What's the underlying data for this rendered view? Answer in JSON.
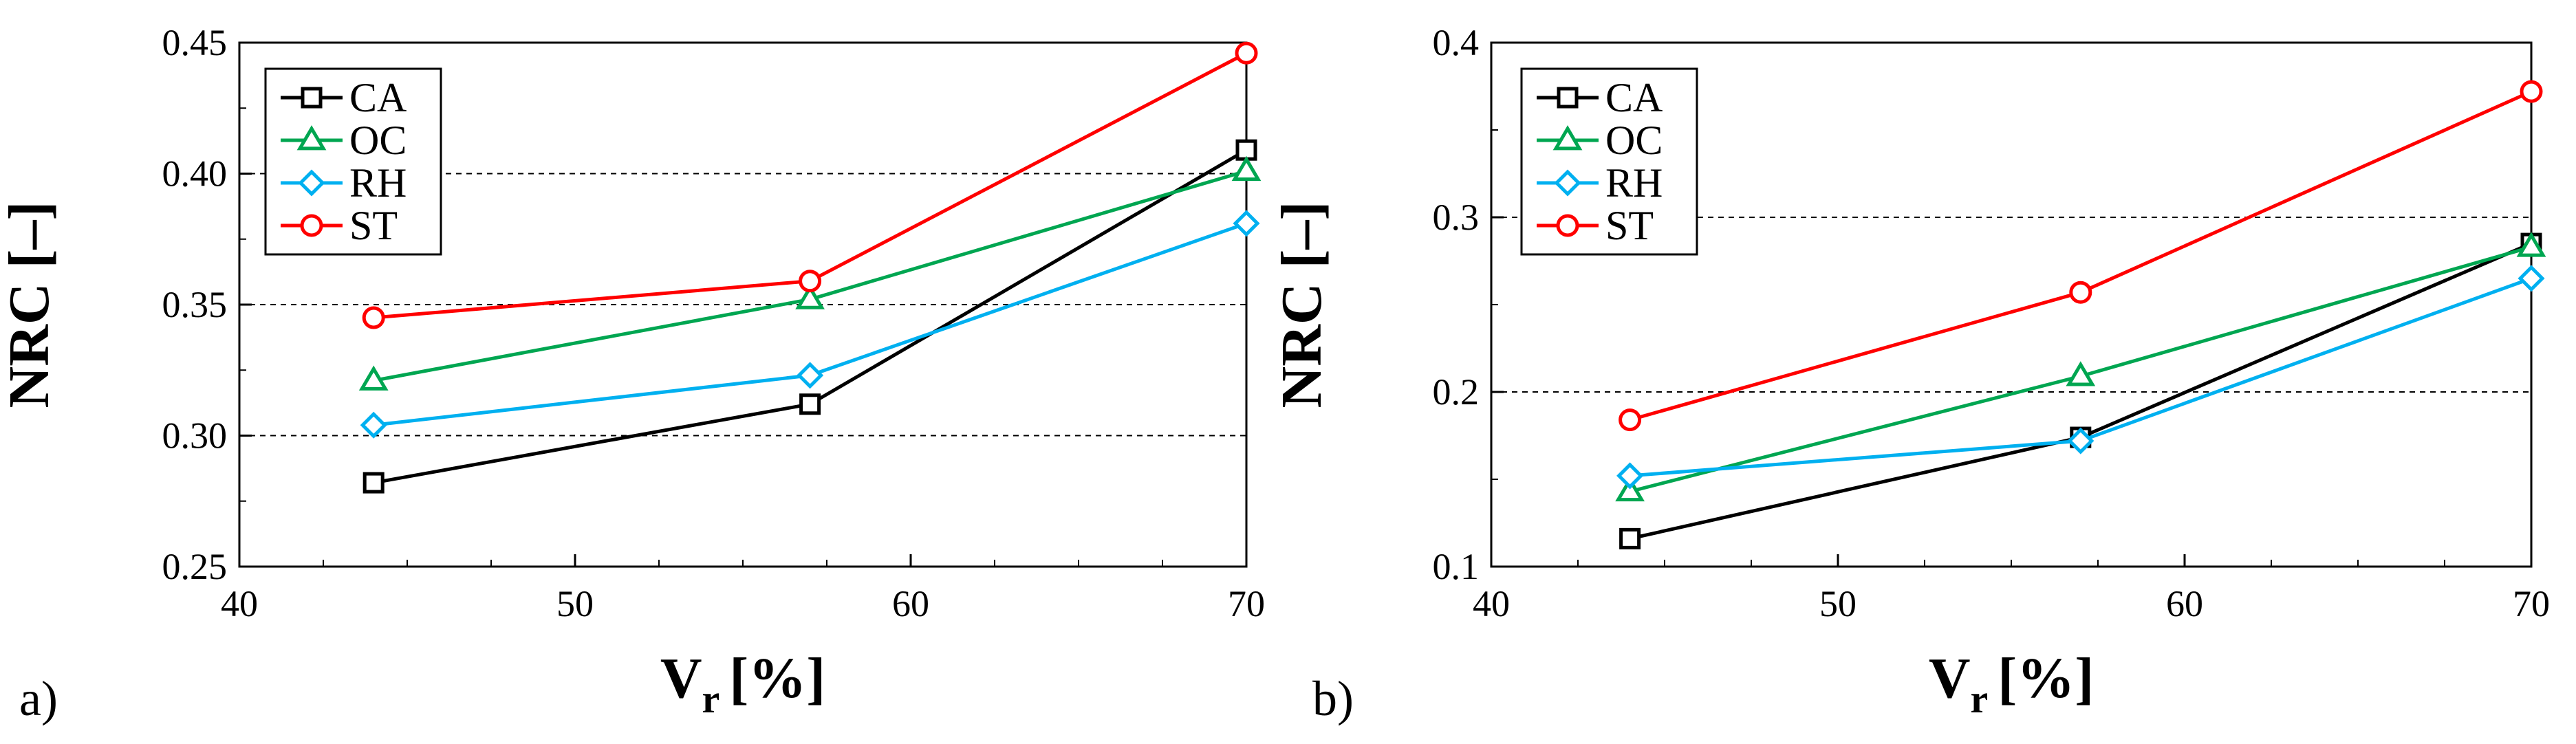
{
  "chart_data": [
    {
      "type": "line",
      "panel_label": "a)",
      "xlabel": "V",
      "xlabel_sub": "r",
      "xlabel_unit": "[%]",
      "ylabel": "NRC [–]",
      "xlim": [
        40,
        70
      ],
      "ylim": [
        0.25,
        0.45
      ],
      "xticks": [
        "40",
        "50",
        "60",
        "70"
      ],
      "xtick_values": [
        40,
        50,
        60,
        70
      ],
      "yticks": [
        "0.25",
        "0.30",
        "0.35",
        "0.40",
        "0.45"
      ],
      "ytick_values": [
        0.25,
        0.3,
        0.35,
        0.4,
        0.45
      ],
      "gridlines": [
        0.3,
        0.35,
        0.4
      ],
      "legend_position": "top-left",
      "x": [
        44,
        57,
        70
      ],
      "series": [
        {
          "name": "CA",
          "color": "#000000",
          "marker": "square",
          "values": [
            0.282,
            0.312,
            0.409
          ]
        },
        {
          "name": "OC",
          "color": "#00a651",
          "marker": "triangle",
          "values": [
            0.321,
            0.352,
            0.401
          ]
        },
        {
          "name": "RH",
          "color": "#00b0f0",
          "marker": "diamond",
          "values": [
            0.304,
            0.323,
            0.381
          ]
        },
        {
          "name": "ST",
          "color": "#ff0000",
          "marker": "circle",
          "values": [
            0.345,
            0.359,
            0.446
          ]
        }
      ]
    },
    {
      "type": "line",
      "panel_label": "b)",
      "xlabel": "V",
      "xlabel_sub": "r",
      "xlabel_unit": "[%]",
      "ylabel": "NRC [–]",
      "xlim": [
        40,
        70
      ],
      "ylim": [
        0.1,
        0.4
      ],
      "xticks": [
        "40",
        "50",
        "60",
        "70"
      ],
      "xtick_values": [
        40,
        50,
        60,
        70
      ],
      "yticks": [
        "0.1",
        "0.2",
        "0.3",
        "0.4"
      ],
      "ytick_values": [
        0.1,
        0.2,
        0.3,
        0.4
      ],
      "gridlines": [
        0.2,
        0.3
      ],
      "legend_position": "top-left",
      "x": [
        44,
        57,
        70
      ],
      "series": [
        {
          "name": "CA",
          "color": "#000000",
          "marker": "square",
          "values": [
            0.116,
            0.174,
            0.285
          ]
        },
        {
          "name": "OC",
          "color": "#00a651",
          "marker": "triangle",
          "values": [
            0.143,
            0.209,
            0.283
          ]
        },
        {
          "name": "RH",
          "color": "#00b0f0",
          "marker": "diamond",
          "values": [
            0.152,
            0.172,
            0.265
          ]
        },
        {
          "name": "ST",
          "color": "#ff0000",
          "marker": "circle",
          "values": [
            0.184,
            0.257,
            0.372
          ]
        }
      ]
    }
  ]
}
